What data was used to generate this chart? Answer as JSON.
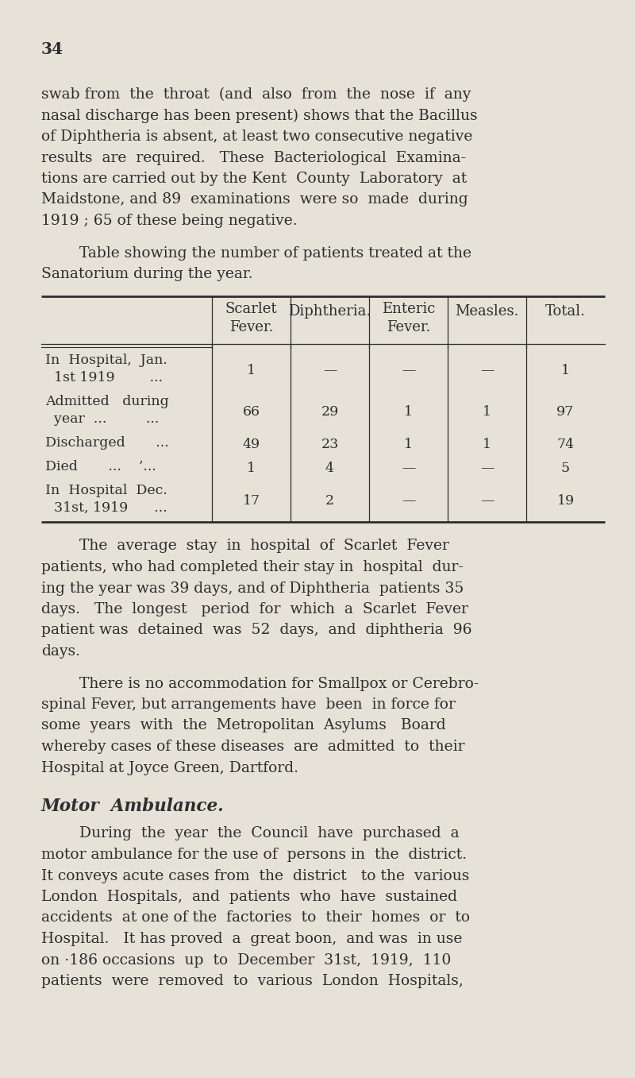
{
  "page_number": "34",
  "background_color": "#e6e2d8",
  "text_color": "#2e2e2e",
  "para1_lines": [
    "swab from  the  throat  (and  also  from  the  nose  if  any",
    "nasal discharge has been present) shows that the Bacillus",
    "of Diphtheria is absent, at least two consecutive negative",
    "results  are  required.   These  Bacteriological  Examina-",
    "tions are carried out by the Kent  County  Laboratory  at",
    "Maidstone, and 89  examinations  were so  made  during",
    "1919 ; 65 of these being negative."
  ],
  "table_intro_line1": "        Table showing the number of patients treated at the",
  "table_intro_line2": "Sanatorium during the year.",
  "table_headers": [
    "Scarlet\nFever.",
    "Diphtheria.",
    "Enteric\nFever.",
    "Measles.",
    "Total."
  ],
  "table_row_labels": [
    [
      "In  Hospital,  Jan.",
      "  1st 1919        ..."
    ],
    [
      "Admitted   during",
      "  year  ...         ..."
    ],
    [
      "Discharged       ..."
    ],
    [
      "Died       ...    ’..."
    ],
    [
      "In  Hospital  Dec.",
      "  31st, 1919      ..."
    ]
  ],
  "table_values": [
    [
      "1",
      "—",
      "—",
      "—",
      "1"
    ],
    [
      "66",
      "29",
      "1",
      "1",
      "97"
    ],
    [
      "49",
      "23",
      "1",
      "1",
      "74"
    ],
    [
      "1",
      "4",
      "—",
      "—",
      "5"
    ],
    [
      "17",
      "2",
      "—",
      "—",
      "19"
    ]
  ],
  "para2_lines": [
    "        The  average  stay  in  hospital  of  Scarlet  Fever",
    "patients, who had completed their stay in  hospital  dur-",
    "ing the year was 39 days, and of Diphtheria  patients 35",
    "days.   The  longest   period  for  which  a  Scarlet  Fever",
    "patient was  detained  was  52  days,  and  diphtheria  96",
    "days."
  ],
  "para3_lines": [
    "        There is no accommodation for Smallpox or Cerebro-",
    "spinal Fever, but arrangements have  been  in force for",
    "some  years  with  the  Metropolitan  Asylums   Board",
    "whereby cases of these diseases  are  admitted  to  their",
    "Hospital at Joyce Green, Dartford."
  ],
  "section_header": "Motor  Ambulance.",
  "para4_lines": [
    "        During  the  year  the  Council  have  purchased  a",
    "motor ambulance for the use of  persons in  the  district.",
    "It conveys acute cases from  the  district   to the  various",
    "London  Hospitals,  and  patients  who  have  sustained",
    "accidents  at one of the  factories  to  their  homes  or  to",
    "Hospital.   It has proved  a  great boon,  and was  in use",
    "on ·186 occasions  up  to  December  31st,  1919,  110",
    "patients  were  removed  to  various  London  Hospitals,"
  ]
}
